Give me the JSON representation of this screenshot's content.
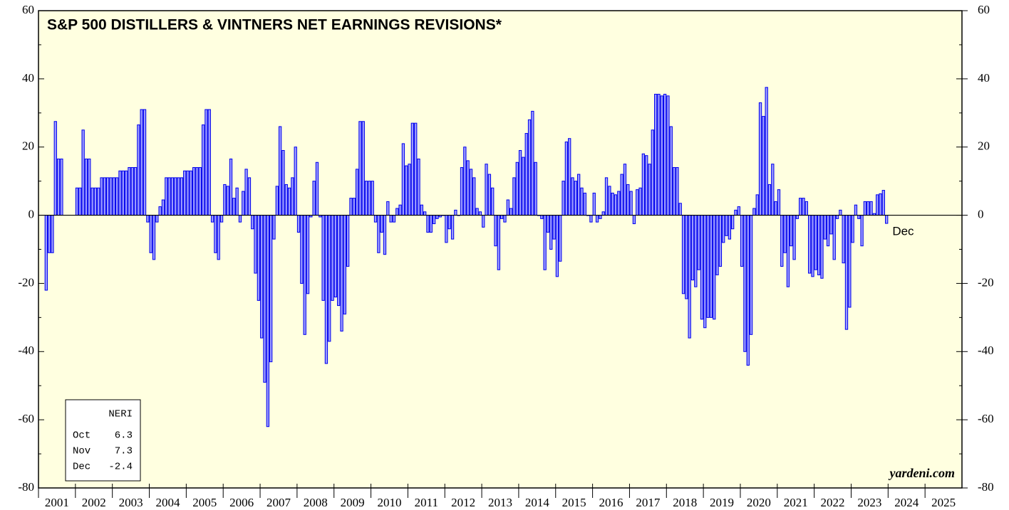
{
  "chart_data": {
    "type": "bar",
    "title": "S&P 500 DISTILLERS & VINTNERS NET EARNINGS REVISIONS*",
    "source": "yardeni.com",
    "annotation": "Dec",
    "legend_box": {
      "header": "NERI",
      "rows": [
        "Oct",
        "Nov",
        "Dec"
      ]
    },
    "color": "#9b9bff",
    "edge_color": "#0000ee",
    "background": "#ffffe0",
    "xlim": [
      2001,
      2026
    ],
    "xticks": [
      2001,
      2002,
      2003,
      2004,
      2005,
      2006,
      2007,
      2008,
      2009,
      2010,
      2011,
      2012,
      2013,
      2014,
      2015,
      2016,
      2017,
      2018,
      2019,
      2020,
      2021,
      2022,
      2023,
      2024,
      2025
    ],
    "ylim": [
      -80,
      60
    ],
    "yticks": [
      -80,
      -60,
      -40,
      -20,
      0,
      20,
      40,
      60
    ],
    "x": [
      2001.0,
      2001.083,
      2001.167,
      2001.25,
      2001.333,
      2001.417,
      2001.5,
      2001.583,
      2001.667,
      2001.75,
      2001.833,
      2001.917,
      2002.0,
      2002.083,
      2002.167,
      2002.25,
      2002.333,
      2002.417,
      2002.5,
      2002.583,
      2002.667,
      2002.75,
      2002.833,
      2002.917,
      2003.0,
      2003.083,
      2003.167,
      2003.25,
      2003.333,
      2003.417,
      2003.5,
      2003.583,
      2003.667,
      2003.75,
      2003.833,
      2003.917,
      2004.0,
      2004.083,
      2004.167,
      2004.25,
      2004.333,
      2004.417,
      2004.5,
      2004.583,
      2004.667,
      2004.75,
      2004.833,
      2004.917,
      2005.0,
      2005.083,
      2005.167,
      2005.25,
      2005.333,
      2005.417,
      2005.5,
      2005.583,
      2005.667,
      2005.75,
      2005.833,
      2005.917,
      2006.0,
      2006.083,
      2006.167,
      2006.25,
      2006.333,
      2006.417,
      2006.5,
      2006.583,
      2006.667,
      2006.75,
      2006.833,
      2006.917,
      2007.0,
      2007.083,
      2007.167,
      2007.25,
      2007.333,
      2007.417,
      2007.5,
      2007.583,
      2007.667,
      2007.75,
      2007.833,
      2007.917,
      2008.0,
      2008.083,
      2008.167,
      2008.25,
      2008.333,
      2008.417,
      2008.5,
      2008.583,
      2008.667,
      2008.75,
      2008.833,
      2008.917,
      2009.0,
      2009.083,
      2009.167,
      2009.25,
      2009.333,
      2009.417,
      2009.5,
      2009.583,
      2009.667,
      2009.75,
      2009.833,
      2009.917,
      2010.0,
      2010.083,
      2010.167,
      2010.25,
      2010.333,
      2010.417,
      2010.5,
      2010.583,
      2010.667,
      2010.75,
      2010.833,
      2010.917,
      2011.0,
      2011.083,
      2011.167,
      2011.25,
      2011.333,
      2011.417,
      2011.5,
      2011.583,
      2011.667,
      2011.75,
      2011.833,
      2011.917,
      2012.0,
      2012.083,
      2012.167,
      2012.25,
      2012.333,
      2012.417,
      2012.5,
      2012.583,
      2012.667,
      2012.75,
      2012.833,
      2012.917,
      2013.0,
      2013.083,
      2013.167,
      2013.25,
      2013.333,
      2013.417,
      2013.5,
      2013.583,
      2013.667,
      2013.75,
      2013.833,
      2013.917,
      2014.0,
      2014.083,
      2014.167,
      2014.25,
      2014.333,
      2014.417,
      2014.5,
      2014.583,
      2014.667,
      2014.75,
      2014.833,
      2014.917,
      2015.0,
      2015.083,
      2015.167,
      2015.25,
      2015.333,
      2015.417,
      2015.5,
      2015.583,
      2015.667,
      2015.75,
      2015.833,
      2015.917,
      2016.0,
      2016.083,
      2016.167,
      2016.25,
      2016.333,
      2016.417,
      2016.5,
      2016.583,
      2016.667,
      2016.75,
      2016.833,
      2016.917,
      2017.0,
      2017.083,
      2017.167,
      2017.25,
      2017.333,
      2017.417,
      2017.5,
      2017.583,
      2017.667,
      2017.75,
      2017.833,
      2017.917,
      2018.0,
      2018.083,
      2018.167,
      2018.25,
      2018.333,
      2018.417,
      2018.5,
      2018.583,
      2018.667,
      2018.75,
      2018.833,
      2018.917,
      2019.0,
      2019.083,
      2019.167,
      2019.25,
      2019.333,
      2019.417,
      2019.5,
      2019.583,
      2019.667,
      2019.75,
      2019.833,
      2019.917,
      2020.0,
      2020.083,
      2020.167,
      2020.25,
      2020.333,
      2020.417,
      2020.5,
      2020.583,
      2020.667,
      2020.75,
      2020.833,
      2020.917,
      2021.0,
      2021.083,
      2021.167,
      2021.25,
      2021.333,
      2021.417,
      2021.5,
      2021.583,
      2021.667,
      2021.75,
      2021.833,
      2021.917,
      2022.0,
      2022.083,
      2022.167,
      2022.25,
      2022.333,
      2022.417,
      2022.5,
      2022.583,
      2022.667,
      2022.75,
      2022.833,
      2022.917,
      2023.0,
      2023.083,
      2023.167,
      2023.25,
      2023.333,
      2023.417,
      2023.5,
      2023.583,
      2023.667,
      2023.75,
      2023.833,
      2023.917
    ],
    "values": [
      null,
      null,
      -22,
      -11,
      -11,
      27.5,
      16.5,
      16.5,
      null,
      null,
      null,
      null,
      8,
      8,
      25,
      16.5,
      16.5,
      8,
      8,
      8,
      11,
      11,
      11,
      11,
      11,
      11,
      13,
      13,
      13,
      14,
      14,
      14,
      26.5,
      31,
      31,
      -2,
      -11,
      -13,
      -2,
      2.5,
      4.5,
      11,
      11,
      11,
      11,
      11,
      11,
      13,
      13,
      13,
      14,
      14,
      14,
      26.5,
      31,
      31,
      -2,
      -11,
      -13,
      -2,
      9,
      8.5,
      16.5,
      5,
      8,
      -2,
      7,
      13.5,
      11,
      -4,
      -17,
      -25,
      -36,
      -49,
      -62,
      -43,
      -7,
      8.5,
      26,
      19,
      9,
      8,
      11,
      20,
      -5,
      -20,
      -35,
      -23,
      -0.5,
      10,
      15.5,
      -0.5,
      -25,
      -43.5,
      -37,
      -25,
      -24,
      -26.5,
      -34,
      -29,
      -15,
      5,
      5,
      13.5,
      27.5,
      27.5,
      10,
      10,
      10,
      -2,
      -11,
      -5,
      -11.5,
      4,
      -2,
      -2,
      2,
      3,
      21,
      14.5,
      15,
      27,
      27,
      16.5,
      3,
      1,
      -5,
      -5,
      -2.5,
      -1,
      -0.5,
      0,
      -8,
      -4,
      -7,
      1.5,
      0,
      14,
      20,
      16,
      13.5,
      11,
      2,
      1,
      -3.5,
      15,
      12,
      8,
      -9,
      -16,
      -1,
      -2,
      4.5,
      2,
      11,
      15.5,
      19,
      17,
      24,
      28,
      30.5,
      15.5,
      0,
      -1,
      -16,
      -5,
      -10,
      -7,
      -18,
      -13.5,
      10,
      21.5,
      22.5,
      11,
      10,
      12,
      8,
      6.5,
      0,
      -2,
      6.5,
      -2,
      -1,
      1,
      11,
      8.5,
      6.5,
      6,
      7,
      12,
      15,
      9,
      7,
      -2.5,
      7.5,
      8,
      18,
      17.5,
      15,
      25,
      35.5,
      35.5,
      35,
      35.5,
      35,
      26,
      14,
      14,
      3.5,
      -23,
      -24.5,
      -36,
      -19,
      -21,
      -16,
      -30.5,
      -33,
      -30,
      -30,
      -30.5,
      -17.5,
      -15,
      -8,
      -6,
      -7,
      -4,
      1.5,
      2.5,
      -15,
      -40,
      -44,
      -35,
      2,
      6,
      33,
      29,
      37.5,
      9,
      15,
      4,
      7.5,
      -15,
      -11,
      -21,
      -9,
      -13,
      -1,
      5,
      5,
      4,
      -17,
      -18,
      -16,
      -17.5,
      -18.5,
      -7,
      -9,
      -5.5,
      -13,
      -1,
      1.5,
      -14,
      -33.5,
      -27,
      -8,
      3,
      -1,
      -9,
      4,
      4,
      4,
      0.5,
      6,
      6.3,
      7.3,
      -2.4
    ]
  }
}
